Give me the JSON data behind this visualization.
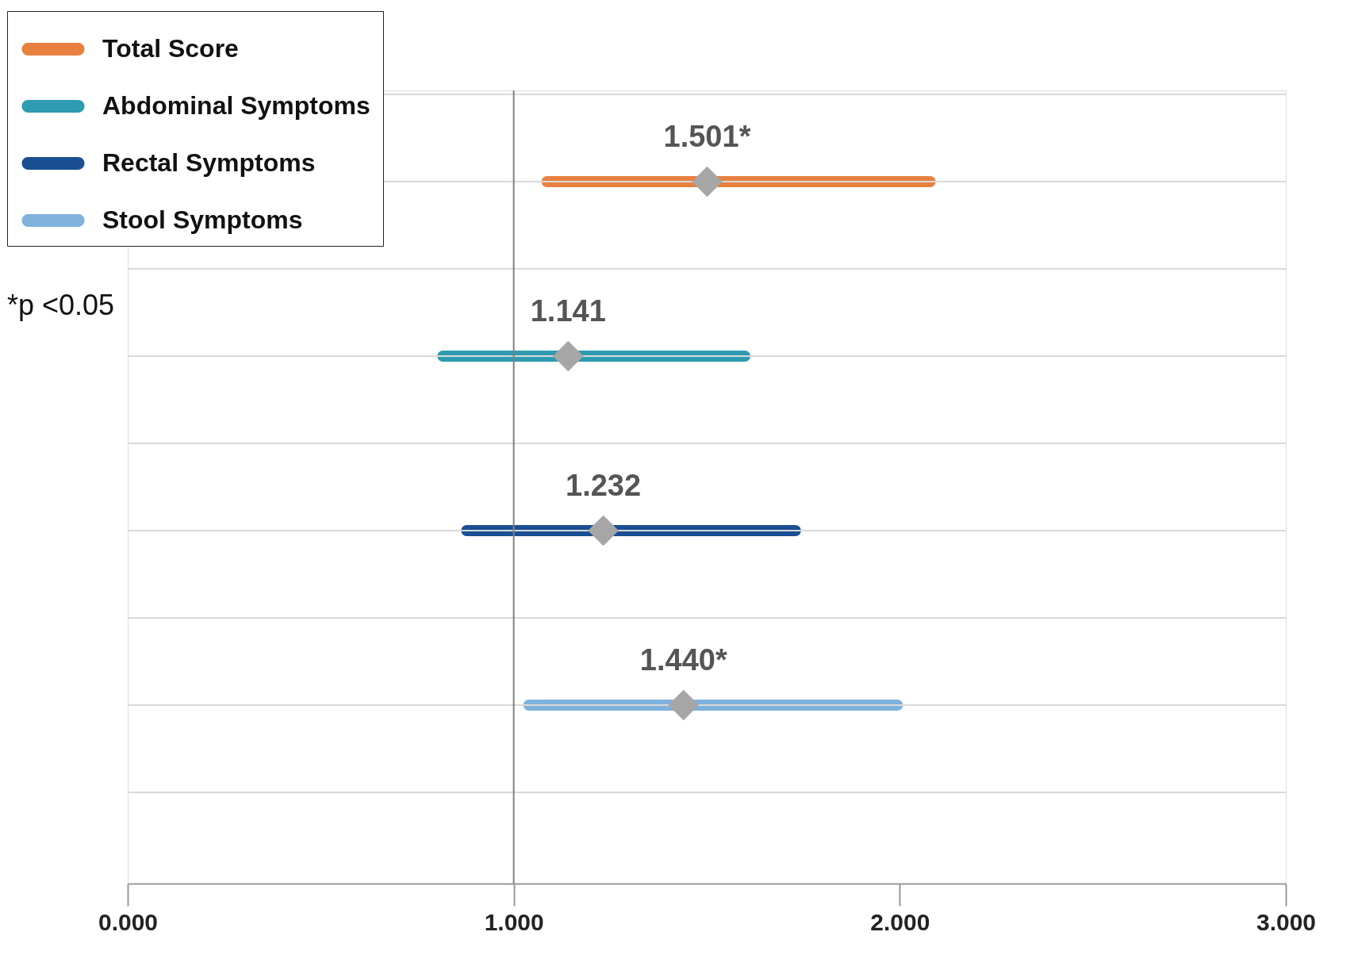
{
  "chart_data": {
    "type": "bar",
    "orientation": "horizontal",
    "categories": [
      null,
      null,
      null,
      null
    ],
    "xlim": [
      0,
      3
    ],
    "xticks": [
      {
        "value": 0,
        "label": "0.000"
      },
      {
        "value": 1,
        "label": "1.000"
      },
      {
        "value": 2,
        "label": "2.000"
      },
      {
        "value": 3,
        "label": "3.000"
      }
    ],
    "tick_labels": "x",
    "grid": "y",
    "legend": "top left",
    "series": [
      {
        "name": "Total Score",
        "color": "#e8803f",
        "base": [
          1.072,
          null,
          null,
          null
        ],
        "values": [
          1.021,
          null,
          null,
          null
        ]
      },
      {
        "name": "Abdominal Symptoms",
        "color": "#2e9bb0",
        "base": [
          null,
          0.802,
          null,
          null
        ],
        "values": [
          null,
          0.811,
          null,
          null
        ]
      },
      {
        "name": "Rectal Symptoms",
        "color": "#1b4f93",
        "base": [
          null,
          null,
          0.864,
          null
        ],
        "values": [
          null,
          null,
          0.88,
          null
        ]
      },
      {
        "name": "Stool Symptoms",
        "color": "#7fb2dd",
        "base": [
          null,
          null,
          null,
          1.025
        ],
        "values": [
          null,
          null,
          null,
          0.983
        ]
      },
      {
        "type": "scatter",
        "marker": "diamond",
        "color": "#a6a6a6",
        "values": [
          1.501,
          1.141,
          1.232,
          1.44
        ],
        "value_labels": [
          "1.501*",
          "1.141",
          "1.232",
          "1.440*"
        ]
      }
    ],
    "ref_lines": [
      {
        "axis": "x",
        "value": 1,
        "color": "#808080"
      }
    ],
    "annotations": [
      "*p <0.05"
    ]
  }
}
